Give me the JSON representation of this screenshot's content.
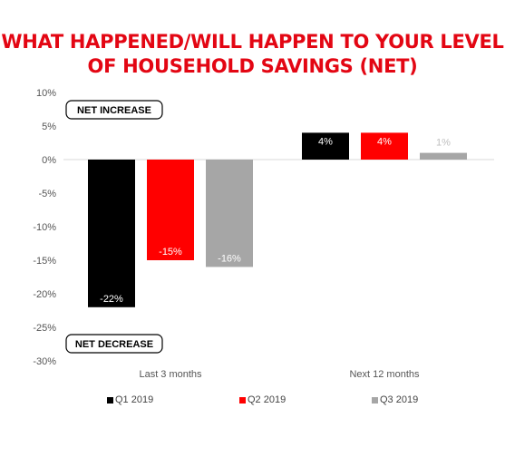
{
  "title_line1": "WHAT HAPPENED/WILL HAPPEN TO YOUR LEVEL",
  "title_line2": "OF HOUSEHOLD SAVINGS (NET)",
  "annotations": {
    "increase": "NET INCREASE",
    "decrease": "NET DECREASE"
  },
  "colors": {
    "title": "#e30613",
    "q1": "#000000",
    "q2": "#ff0000",
    "q3": "#a6a6a6"
  },
  "chart_data": {
    "type": "bar",
    "title": "WHAT HAPPENED/WILL HAPPEN TO YOUR LEVEL OF HOUSEHOLD SAVINGS (NET)",
    "categories": [
      "Last 3 months",
      "Next 12 months"
    ],
    "series": [
      {
        "name": "Q1 2019",
        "color": "#000000",
        "values": [
          -22,
          4
        ],
        "labels": [
          "-22%",
          "4%"
        ]
      },
      {
        "name": "Q2 2019",
        "color": "#ff0000",
        "values": [
          -15,
          4
        ],
        "labels": [
          "-15%",
          "4%"
        ]
      },
      {
        "name": "Q3 2019",
        "color": "#a6a6a6",
        "values": [
          -16,
          1
        ],
        "labels": [
          "-16%",
          "1%"
        ]
      }
    ],
    "yticks": [
      "10%",
      "5%",
      "0%",
      "-5%",
      "-10%",
      "-15%",
      "-20%",
      "-25%",
      "-30%"
    ],
    "ylim": [
      -30,
      10
    ],
    "xlabel": "",
    "ylabel": "",
    "grid": false,
    "legend_position": "bottom"
  }
}
